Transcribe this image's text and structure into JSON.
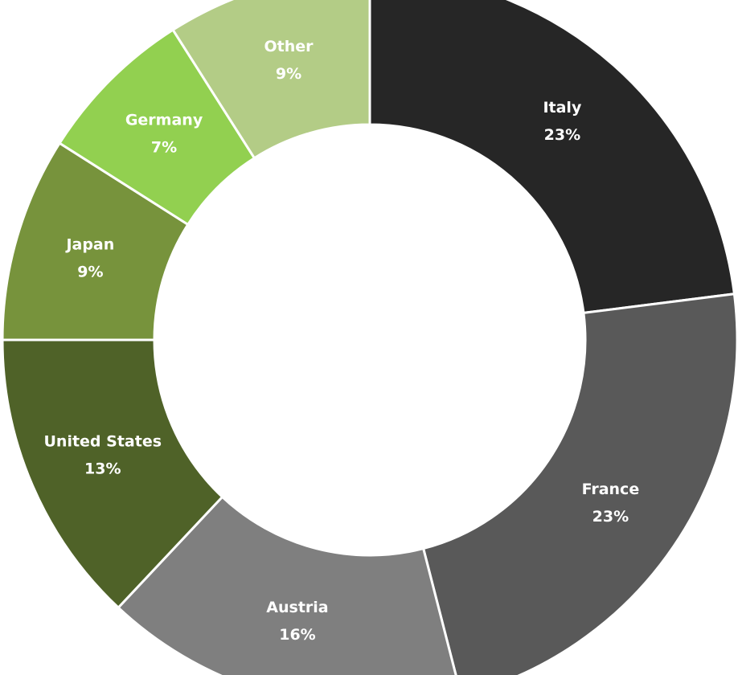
{
  "chart_data": {
    "type": "donut",
    "categories": [
      "Italy",
      "France",
      "Austria",
      "United States",
      "Japan",
      "Germany",
      "Other"
    ],
    "values": [
      23,
      23,
      16,
      13,
      9,
      7,
      9
    ],
    "value_labels": [
      "23%",
      "23%",
      "16%",
      "13%",
      "9%",
      "7%",
      "9%"
    ],
    "colors": [
      "#262626",
      "#595959",
      "#7f7f7f",
      "#4f6228",
      "#77933c",
      "#92d050",
      "#b3cc86"
    ]
  }
}
